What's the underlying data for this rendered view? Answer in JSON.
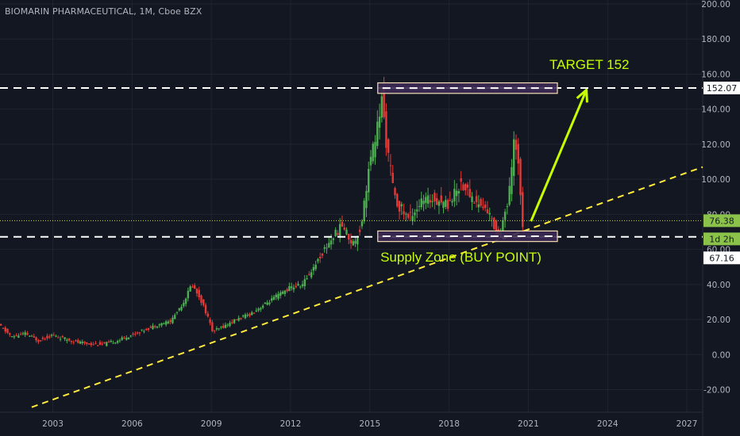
{
  "header": {
    "title": "BIOMARIN PHARMACEUTICAL, 1M, Cboe BZX"
  },
  "colors": {
    "background": "#131722",
    "up": "#4caf50",
    "down": "#e53935",
    "grid": "#1f2430",
    "axis_text": "#b2b5be",
    "annotation": "#c6ff00",
    "trendline": "#ffeb3b",
    "zone_fill": "#3d2a55",
    "zone_border": "#f5deb3",
    "price_line": "#cddc39"
  },
  "chart_data": {
    "type": "candlestick",
    "title": "BIOMARIN PHARMACEUTICAL, 1M, Cboe BZX",
    "x_ticks": [
      "2003",
      "2006",
      "2009",
      "2012",
      "2015",
      "2018",
      "2021",
      "2024",
      "2027"
    ],
    "y_ticks": [
      "200.00",
      "180.00",
      "160.00",
      "140.00",
      "120.00",
      "100.00",
      "80.00",
      "60.00",
      "40.00",
      "20.00",
      "0.00",
      "-20.00"
    ],
    "ylim": [
      -27,
      200
    ],
    "xlim": [
      2001.0,
      2027.6
    ],
    "grid": true,
    "price_path": [
      [
        2001.0,
        17
      ],
      [
        2001.5,
        10
      ],
      [
        2002.0,
        12
      ],
      [
        2002.5,
        8
      ],
      [
        2003.0,
        11
      ],
      [
        2003.5,
        9
      ],
      [
        2004.0,
        7
      ],
      [
        2004.5,
        6
      ],
      [
        2005.0,
        6
      ],
      [
        2005.5,
        8
      ],
      [
        2006.0,
        11
      ],
      [
        2006.5,
        14
      ],
      [
        2007.0,
        17
      ],
      [
        2007.5,
        19
      ],
      [
        2008.0,
        30
      ],
      [
        2008.3,
        40
      ],
      [
        2008.6,
        33
      ],
      [
        2008.9,
        22
      ],
      [
        2009.1,
        13
      ],
      [
        2009.5,
        16
      ],
      [
        2010.0,
        20
      ],
      [
        2010.5,
        23
      ],
      [
        2011.0,
        28
      ],
      [
        2011.5,
        33
      ],
      [
        2012.0,
        38
      ],
      [
        2012.5,
        40
      ],
      [
        2013.0,
        52
      ],
      [
        2013.5,
        64
      ],
      [
        2014.0,
        74
      ],
      [
        2014.4,
        63
      ],
      [
        2014.7,
        72
      ],
      [
        2015.0,
        105
      ],
      [
        2015.3,
        127
      ],
      [
        2015.5,
        145
      ],
      [
        2015.7,
        118
      ],
      [
        2016.0,
        88
      ],
      [
        2016.5,
        78
      ],
      [
        2017.0,
        87
      ],
      [
        2017.5,
        89
      ],
      [
        2018.0,
        86
      ],
      [
        2018.5,
        98
      ],
      [
        2019.0,
        88
      ],
      [
        2019.5,
        82
      ],
      [
        2019.9,
        68
      ],
      [
        2020.1,
        78
      ],
      [
        2020.3,
        88
      ],
      [
        2020.5,
        120
      ],
      [
        2020.7,
        110
      ],
      [
        2020.8,
        76
      ]
    ],
    "series": [
      {
        "name": "",
        "type": "trendline",
        "points": [
          [
            2002.2,
            -30
          ],
          [
            2027.6,
            107
          ]
        ]
      }
    ],
    "levels": [
      {
        "label": "152.07",
        "value": 152.07,
        "style": "dashed"
      },
      {
        "label": "67.16",
        "value": 67.16,
        "style": "dashed"
      }
    ],
    "last_price": {
      "label": "76.38",
      "value": 76.38
    },
    "countdown": "1d 2h",
    "zones": [
      {
        "name": "target zone",
        "x0": 2015.3,
        "x1": 2022.1,
        "y0": 149,
        "y1": 155
      },
      {
        "name": "supply zone",
        "x0": 2015.3,
        "x1": 2022.1,
        "y0": 64.5,
        "y1": 70.5
      }
    ],
    "arrow": {
      "from": [
        2021.1,
        76
      ],
      "to": [
        2023.2,
        151
      ]
    },
    "annotations": [
      {
        "text": "TARGET 152",
        "x": 2021.8,
        "y": 163
      },
      {
        "text": "Supply Zone (BUY POINT)",
        "x": 2015.4,
        "y": 53
      }
    ]
  }
}
